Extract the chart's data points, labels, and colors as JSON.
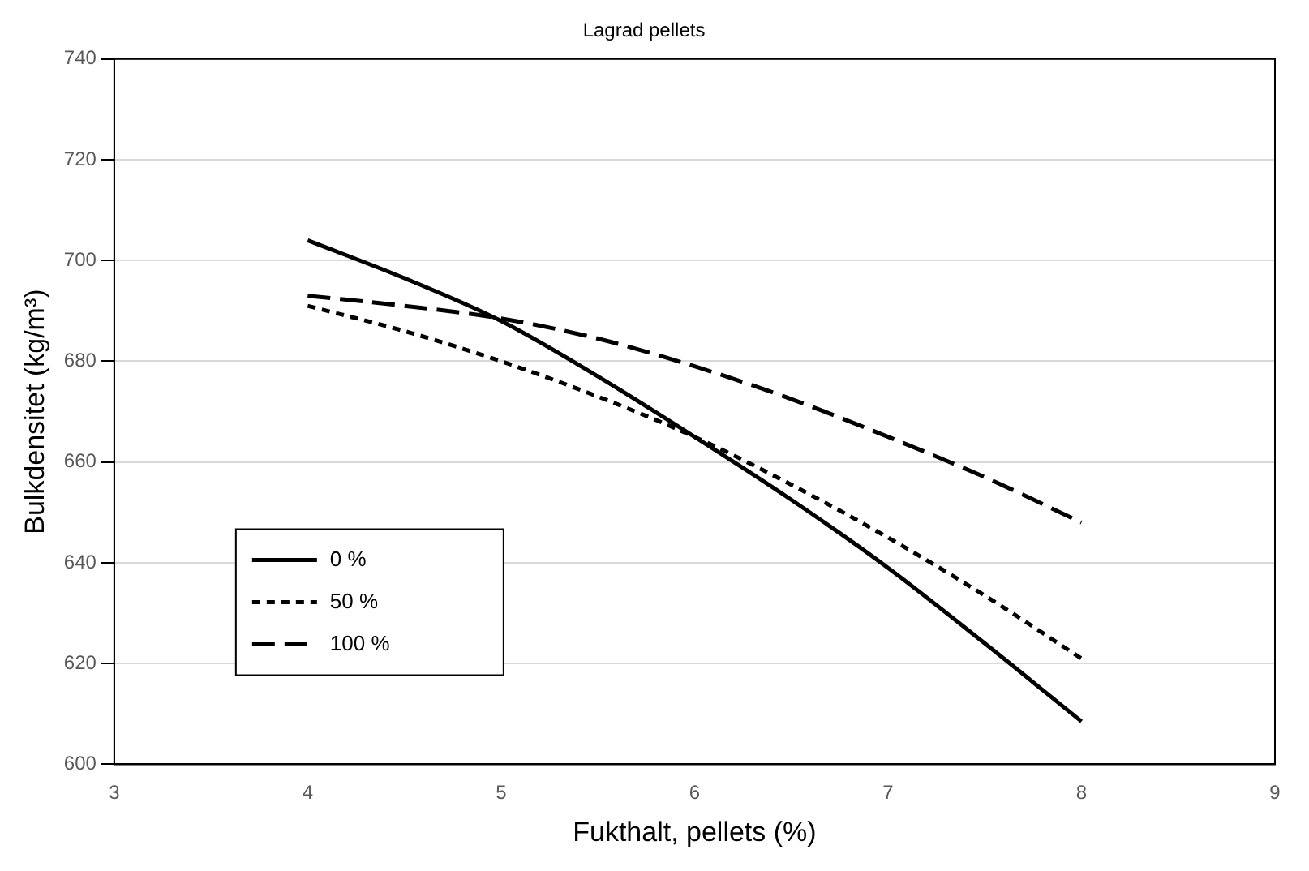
{
  "chart_data": {
    "type": "line",
    "title": "Lagrad pellets",
    "xlabel": "Fukthalt, pellets (%)",
    "ylabel": "Bulkdensitet (kg/m³)",
    "xlim": [
      3,
      9
    ],
    "xticks": [
      3,
      4,
      5,
      6,
      7,
      8,
      9
    ],
    "ylim": [
      600,
      740
    ],
    "yticks": [
      600,
      620,
      640,
      660,
      680,
      700,
      720,
      740
    ],
    "grid": "y",
    "legend": "bottom left",
    "marker": "none",
    "series": [
      {
        "name": "0 %",
        "color": "#000000",
        "line_style": "solid",
        "x": [
          4,
          4.5,
          5,
          5.5,
          6,
          6.5,
          7,
          7.5,
          8
        ],
        "values": [
          704,
          696.5,
          688,
          677,
          665,
          652.5,
          639,
          624,
          608.5
        ]
      },
      {
        "name": "50 %",
        "color": "#000000",
        "line_style": "dotted",
        "x": [
          4,
          4.5,
          5,
          5.5,
          6,
          6.5,
          7,
          7.5,
          8
        ],
        "values": [
          691,
          686,
          680,
          673,
          665,
          655.5,
          645,
          633.5,
          621
        ]
      },
      {
        "name": "100 %",
        "color": "#000000",
        "line_style": "dashed",
        "x": [
          4,
          4.5,
          5,
          5.5,
          6,
          6.5,
          7,
          7.5,
          8
        ],
        "values": [
          693,
          691,
          688.5,
          684.5,
          679,
          672.5,
          665,
          657,
          648
        ]
      }
    ]
  }
}
